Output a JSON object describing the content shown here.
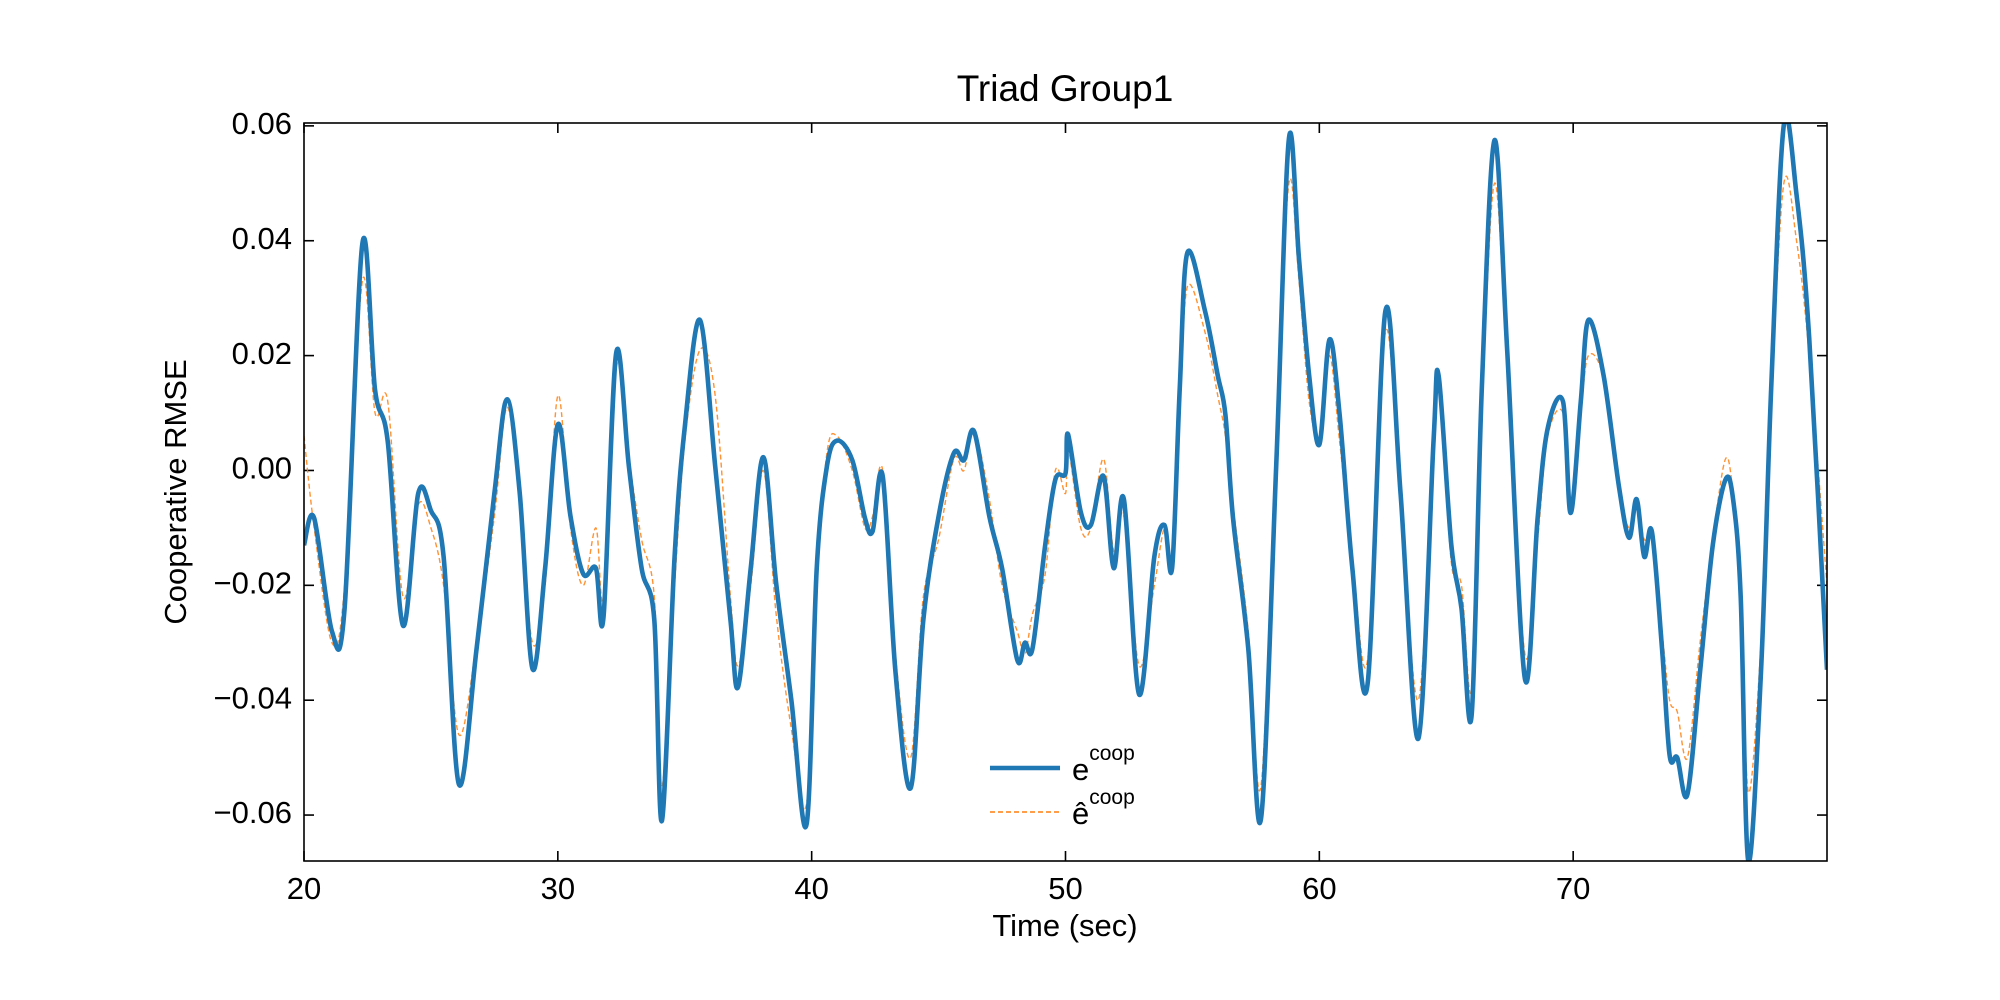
{
  "chart_data": {
    "type": "line",
    "title": "Triad Group1",
    "x_label": "Time (sec)",
    "y_label": "Cooperative RMSE",
    "x": [
      20,
      20.4,
      21.1,
      21.6,
      22.3,
      22.8,
      23.3,
      23.9,
      24.5,
      25.0,
      25.5,
      26.1,
      26.8,
      27.5,
      28.0,
      28.5,
      29.0,
      29.5,
      30.0,
      30.5,
      31.0,
      31.5,
      31.8,
      32.3,
      32.8,
      33.3,
      33.8,
      34.1,
      34.6,
      35.0,
      35.6,
      36.2,
      36.8,
      37.1,
      37.6,
      38.1,
      38.6,
      39.2,
      39.8,
      40.2,
      40.6,
      41.0,
      41.6,
      42.1,
      42.4,
      42.8,
      43.3,
      43.9,
      44.4,
      45.0,
      45.6,
      46.0,
      46.4,
      47.0,
      47.5,
      48.1,
      48.4,
      48.7,
      49.2,
      49.6,
      50.0,
      50.1,
      50.6,
      51.0,
      51.5,
      51.9,
      52.3,
      52.9,
      53.5,
      53.9,
      54.2,
      54.5,
      54.8,
      55.5,
      56.0,
      56.3,
      56.6,
      57.2,
      57.7,
      58.3,
      58.8,
      59.2,
      59.6,
      60.0,
      60.4,
      60.8,
      61.3,
      61.9,
      62.6,
      63.2,
      63.9,
      64.5,
      64.7,
      65.2,
      65.6,
      66.0,
      66.4,
      66.9,
      67.4,
      68.1,
      68.6,
      69.0,
      69.6,
      69.9,
      70.3,
      70.6,
      71.2,
      71.8,
      72.2,
      72.5,
      72.8,
      73.1,
      73.5,
      73.8,
      74.1,
      74.5,
      75.0,
      75.5,
      76.0,
      76.3,
      76.6,
      76.9,
      77.4,
      77.8,
      78.3,
      78.8,
      79.3,
      80.0
    ],
    "series": [
      {
        "name": "e",
        "superscript": "coop",
        "color": "#1f77b4",
        "style": "solid",
        "values": [
          -0.013,
          -0.0083,
          -0.028,
          -0.024,
          0.0395,
          0.014,
          0.005,
          -0.027,
          -0.004,
          -0.007,
          -0.015,
          -0.0546,
          -0.031,
          -0.004,
          0.0124,
          -0.004,
          -0.0345,
          -0.017,
          0.008,
          -0.008,
          -0.018,
          -0.017,
          -0.0255,
          0.0205,
          0.0007,
          -0.017,
          -0.026,
          -0.061,
          -0.015,
          0.0075,
          0.0262,
          0.0007,
          -0.026,
          -0.0377,
          -0.017,
          0.0023,
          -0.0196,
          -0.04,
          -0.0616,
          -0.017,
          0.0007,
          0.0052,
          0.0018,
          -0.0083,
          -0.0106,
          -0.001,
          -0.035,
          -0.0553,
          -0.026,
          -0.008,
          0.003,
          0.0018,
          0.0068,
          -0.008,
          -0.017,
          -0.033,
          -0.03,
          -0.031,
          -0.013,
          -0.0016,
          -0.0005,
          0.0063,
          -0.0072,
          -0.0095,
          -0.001,
          -0.017,
          -0.005,
          -0.039,
          -0.015,
          -0.0095,
          -0.017,
          0.0142,
          0.0379,
          0.0277,
          0.0165,
          0.0097,
          -0.0083,
          -0.031,
          -0.0607,
          0.0007,
          0.0577,
          0.0368,
          0.0165,
          0.0045,
          0.0228,
          0.0097,
          -0.017,
          -0.0372,
          0.0277,
          -0.004,
          -0.0467,
          0.0052,
          0.0165,
          -0.013,
          -0.024,
          -0.0426,
          0.0142,
          0.0575,
          0.021,
          -0.0363,
          -0.0083,
          0.0074,
          0.012,
          -0.0074,
          0.012,
          0.0262,
          0.0165,
          -0.0027,
          -0.0117,
          -0.005,
          -0.015,
          -0.0106,
          -0.031,
          -0.0496,
          -0.05,
          -0.0564,
          -0.035,
          -0.013,
          -0.0016,
          -0.005,
          -0.022,
          -0.068,
          -0.035,
          0.0142,
          0.0602,
          0.048,
          0.023,
          -0.0347
        ]
      },
      {
        "name": "ê",
        "superscript": "coop",
        "color": "#ff7f0e",
        "style": "dashed",
        "values": [
          0.006,
          -0.01,
          -0.03,
          -0.02,
          0.033,
          0.01,
          0.012,
          -0.022,
          -0.006,
          -0.01,
          -0.02,
          -0.046,
          -0.03,
          -0.008,
          0.011,
          -0.006,
          -0.03,
          -0.02,
          0.013,
          -0.01,
          -0.02,
          -0.01,
          -0.022,
          0.018,
          0.002,
          -0.012,
          -0.022,
          -0.055,
          -0.02,
          0.005,
          0.021,
          0.013,
          -0.022,
          -0.034,
          -0.02,
          0.0,
          -0.025,
          -0.045,
          -0.058,
          -0.02,
          0.003,
          0.006,
          0.0,
          -0.01,
          -0.008,
          0.0,
          -0.032,
          -0.05,
          -0.022,
          -0.012,
          0.002,
          0.0,
          0.007,
          -0.005,
          -0.02,
          -0.028,
          -0.032,
          -0.025,
          -0.018,
          0.0,
          -0.004,
          0.004,
          -0.01,
          -0.01,
          0.002,
          -0.014,
          -0.008,
          -0.034,
          -0.02,
          -0.01,
          -0.015,
          0.01,
          0.032,
          0.024,
          0.013,
          0.006,
          -0.006,
          -0.028,
          -0.055,
          0.005,
          0.05,
          0.033,
          0.012,
          0.006,
          0.02,
          0.005,
          -0.015,
          -0.033,
          0.024,
          -0.006,
          -0.04,
          0.004,
          0.015,
          -0.016,
          -0.02,
          -0.038,
          0.01,
          0.05,
          0.018,
          -0.032,
          -0.012,
          0.006,
          0.01,
          -0.005,
          0.01,
          0.02,
          0.016,
          -0.003,
          -0.01,
          -0.006,
          -0.012,
          -0.012,
          -0.028,
          -0.04,
          -0.042,
          -0.05,
          -0.03,
          -0.012,
          0.002,
          -0.004,
          -0.02,
          -0.056,
          -0.03,
          0.012,
          0.05,
          0.04,
          0.02,
          -0.02
        ]
      }
    ],
    "xlim": [
      20,
      80
    ],
    "xticks": [
      20,
      30,
      40,
      50,
      60,
      70
    ],
    "ylim": [
      -0.068,
      0.0605
    ],
    "yticks": [
      {
        "value": -0.06,
        "label": "−0.06"
      },
      {
        "value": -0.04,
        "label": "−0.04"
      },
      {
        "value": -0.02,
        "label": "−0.02"
      },
      {
        "value": 0,
        "label": "0.00"
      },
      0.02,
      0.04,
      0.06
    ],
    "grid": false,
    "legend_position": "lower center"
  }
}
